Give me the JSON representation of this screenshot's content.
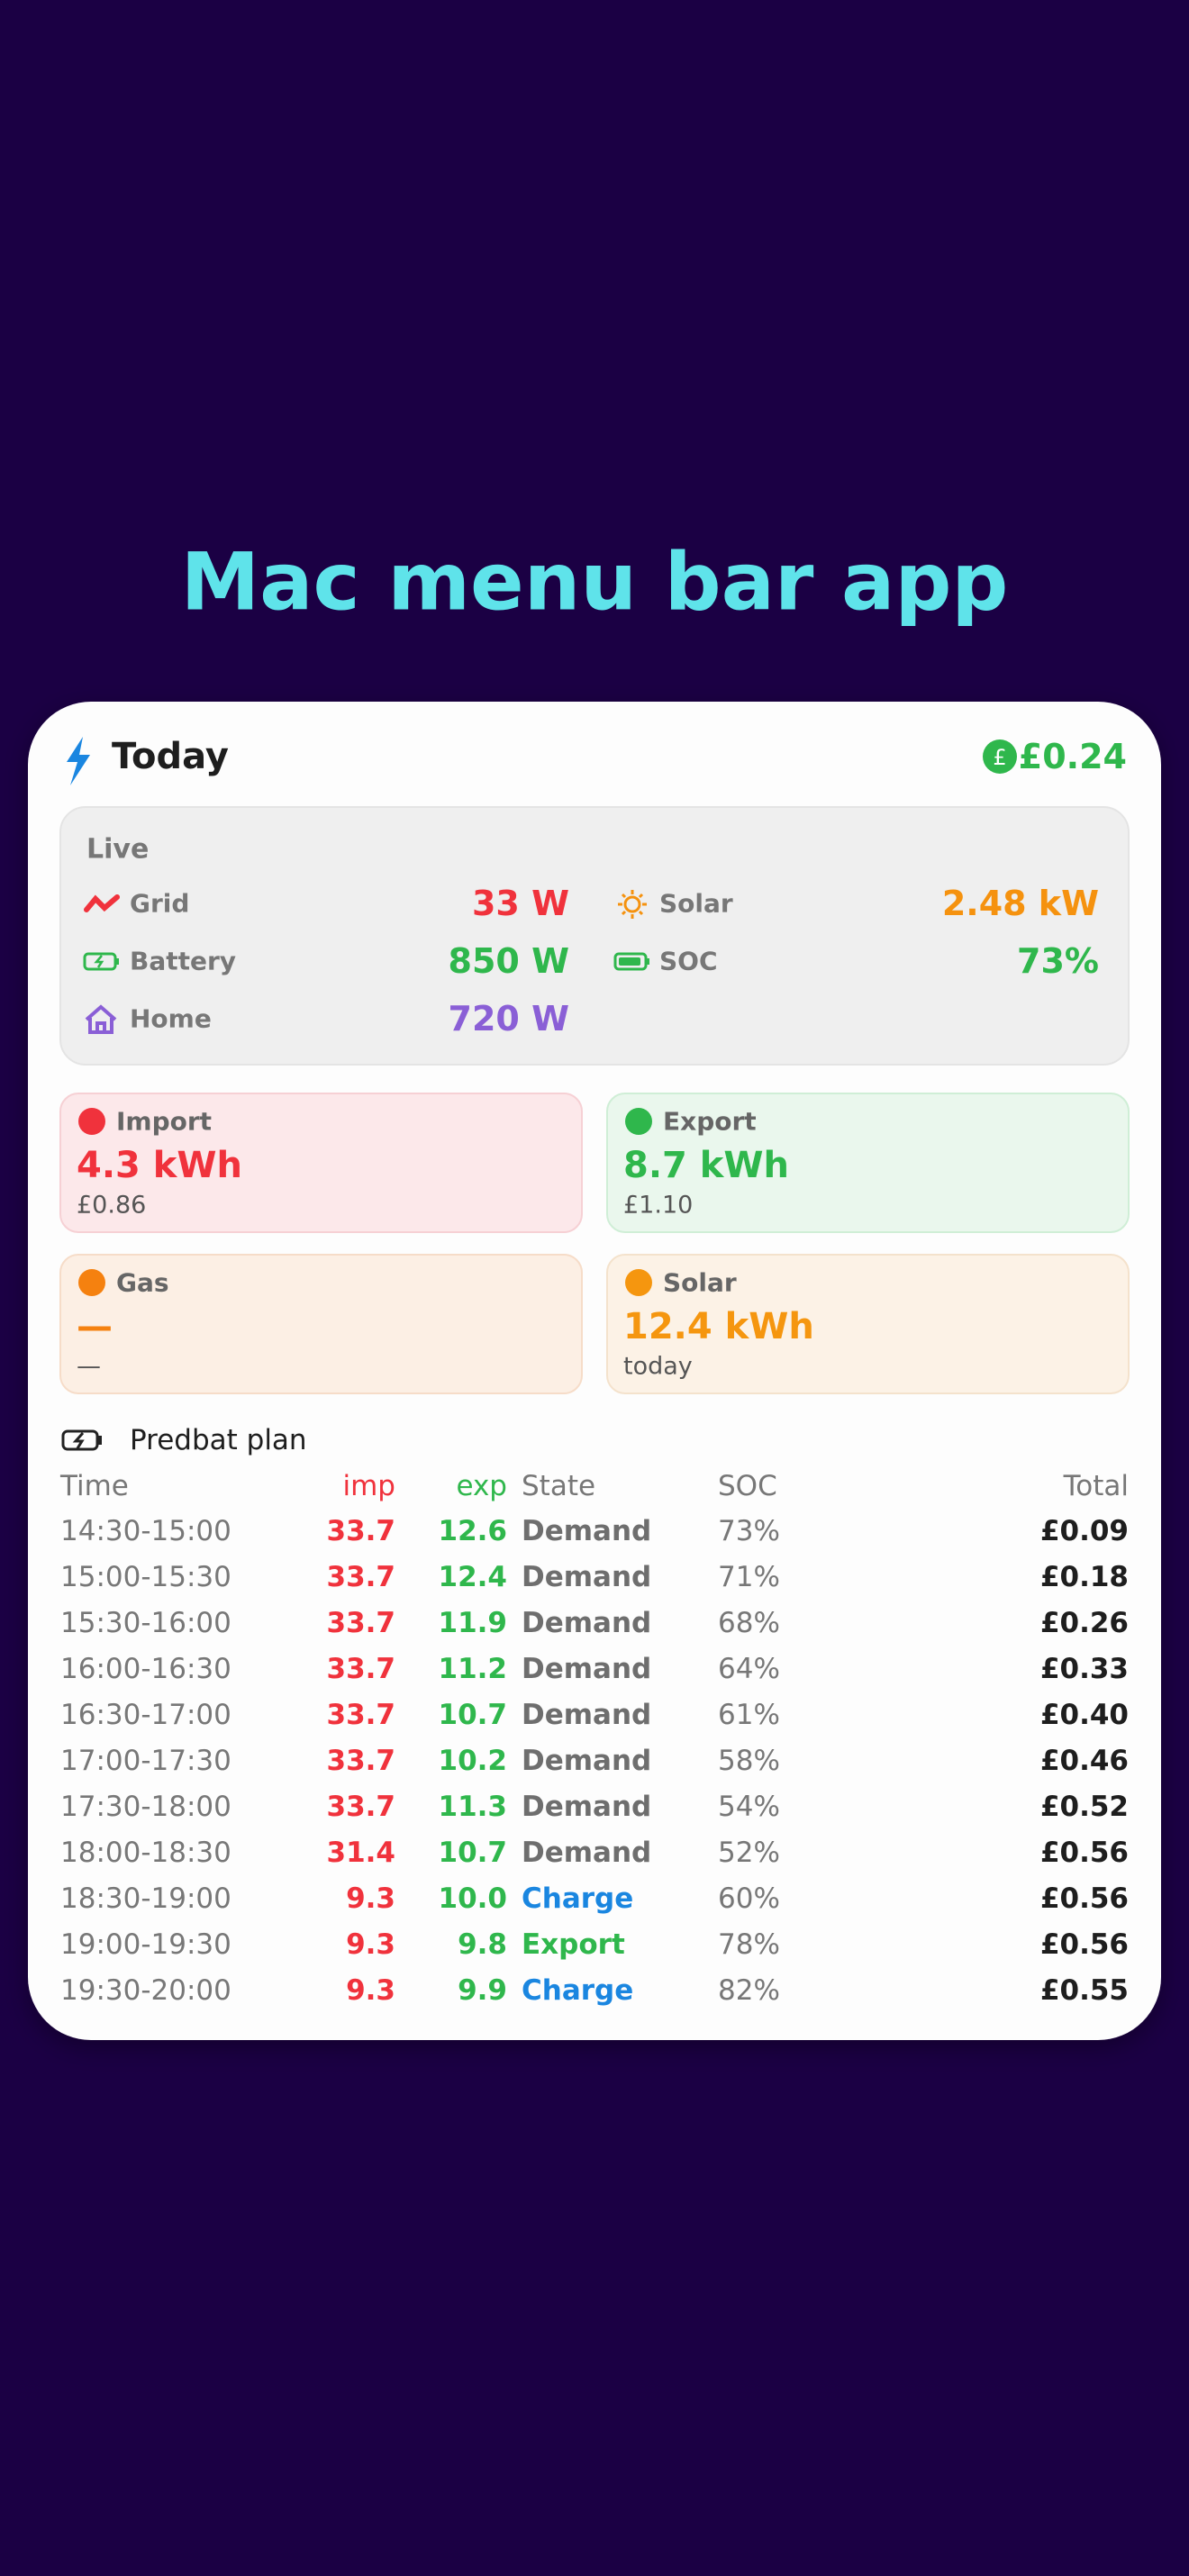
{
  "title": "Mac menu bar app",
  "header": {
    "title": "Today",
    "currency_icon": "£",
    "total": "£0.24"
  },
  "live": {
    "title": "Live",
    "items": [
      {
        "label": "Grid",
        "value": "33 W",
        "color": "#f0323c"
      },
      {
        "label": "Solar",
        "value": "2.48 kW",
        "color": "#f5920f"
      },
      {
        "label": "Battery",
        "value": "850 W",
        "color": "#2fb74c"
      },
      {
        "label": "SOC",
        "value": "73%",
        "color": "#2fb74c"
      },
      {
        "label": "Home",
        "value": "720 W",
        "color": "#8a5fd6"
      }
    ]
  },
  "tiles": [
    {
      "title": "Import",
      "value": "4.3 kWh",
      "sub": "£0.86",
      "color": "#f0323c"
    },
    {
      "title": "Export",
      "value": "8.7 kWh",
      "sub": "£1.10",
      "color": "#2fb74c"
    },
    {
      "title": "Gas",
      "value": "—",
      "sub": "—",
      "color": "#f5810f"
    },
    {
      "title": "Solar",
      "value": "12.4 kWh",
      "sub": "today",
      "color": "#f5960f"
    }
  ],
  "plan": {
    "title": "Predbat plan",
    "columns": [
      "Time",
      "imp",
      "exp",
      "State",
      "SOC",
      "Total"
    ],
    "rows": [
      {
        "time": "14:30-15:00",
        "imp": "33.7",
        "exp": "12.6",
        "state": "Demand",
        "state_color": "#6e6e6e",
        "soc": "73%",
        "total": "£0.09"
      },
      {
        "time": "15:00-15:30",
        "imp": "33.7",
        "exp": "12.4",
        "state": "Demand",
        "state_color": "#6e6e6e",
        "soc": "71%",
        "total": "£0.18"
      },
      {
        "time": "15:30-16:00",
        "imp": "33.7",
        "exp": "11.9",
        "state": "Demand",
        "state_color": "#6e6e6e",
        "soc": "68%",
        "total": "£0.26"
      },
      {
        "time": "16:00-16:30",
        "imp": "33.7",
        "exp": "11.2",
        "state": "Demand",
        "state_color": "#6e6e6e",
        "soc": "64%",
        "total": "£0.33"
      },
      {
        "time": "16:30-17:00",
        "imp": "33.7",
        "exp": "10.7",
        "state": "Demand",
        "state_color": "#6e6e6e",
        "soc": "61%",
        "total": "£0.40"
      },
      {
        "time": "17:00-17:30",
        "imp": "33.7",
        "exp": "10.2",
        "state": "Demand",
        "state_color": "#6e6e6e",
        "soc": "58%",
        "total": "£0.46"
      },
      {
        "time": "17:30-18:00",
        "imp": "33.7",
        "exp": "11.3",
        "state": "Demand",
        "state_color": "#6e6e6e",
        "soc": "54%",
        "total": "£0.52"
      },
      {
        "time": "18:00-18:30",
        "imp": "31.4",
        "exp": "10.7",
        "state": "Demand",
        "state_color": "#6e6e6e",
        "soc": "52%",
        "total": "£0.56"
      },
      {
        "time": "18:30-19:00",
        "imp": "9.3",
        "exp": "10.0",
        "state": "Charge",
        "state_color": "#1a86e0",
        "soc": "60%",
        "total": "£0.56"
      },
      {
        "time": "19:00-19:30",
        "imp": "9.3",
        "exp": "9.8",
        "state": "Export",
        "state_color": "#2fb74c",
        "soc": "78%",
        "total": "£0.56"
      },
      {
        "time": "19:30-20:00",
        "imp": "9.3",
        "exp": "9.9",
        "state": "Charge",
        "state_color": "#1a86e0",
        "soc": "82%",
        "total": "£0.55"
      }
    ]
  }
}
